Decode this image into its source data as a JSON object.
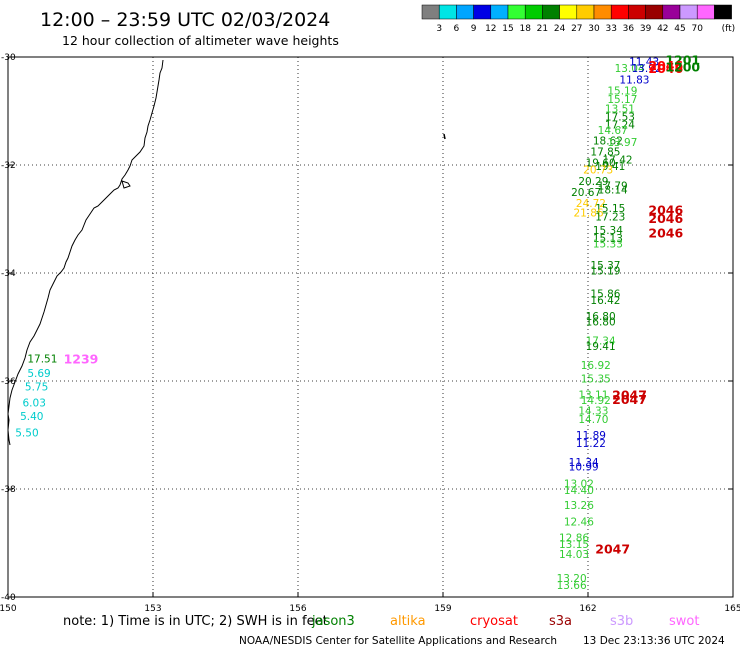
{
  "title": "12:00 – 23:59 UTC 02/03/2024",
  "subtitle": "12 hour collection of altimeter wave heights",
  "color_scale": {
    "colors": [
      "#7f7f7f",
      "#00e5e5",
      "#00a5ff",
      "#0000e5",
      "#00b0ff",
      "#33ff33",
      "#00cc00",
      "#008000",
      "#ffff00",
      "#ffcc00",
      "#ff8c00",
      "#ff0000",
      "#cc0000",
      "#990000",
      "#990099",
      "#cc99ff",
      "#ff66ff",
      "#000000"
    ],
    "labels": [
      "3",
      "6",
      "9",
      "12",
      "15",
      "18",
      "21",
      "24",
      "27",
      "30",
      "33",
      "36",
      "39",
      "42",
      "45",
      "70"
    ],
    "unit": "(ft)"
  },
  "chart_data": {
    "type": "scatter",
    "title": "12:00 – 23:59 UTC 02/03/2024",
    "subtitle": "12 hour collection of altimeter wave heights",
    "xlim": [
      150,
      165
    ],
    "ylim": [
      -40,
      -30
    ],
    "x_ticks": [
      "150",
      "153",
      "156",
      "159",
      "162",
      "165"
    ],
    "y_ticks": [
      "-30",
      "-32",
      "-34",
      "-36",
      "-38",
      "-40"
    ],
    "grid": true,
    "points": [
      {
        "label": "11.43",
        "x": 162.85,
        "y": -30.08,
        "color": "#0000cc"
      },
      {
        "label": "13.04",
        "x": 162.55,
        "y": -30.2,
        "color": "#33cc33"
      },
      {
        "label": "13.92",
        "x": 162.9,
        "y": -30.2,
        "color": "#0000cc"
      },
      {
        "label": "11.83",
        "x": 162.65,
        "y": -30.42,
        "color": "#0000cc"
      },
      {
        "label": "15.19",
        "x": 162.4,
        "y": -30.62,
        "color": "#33cc33"
      },
      {
        "label": "15.17",
        "x": 162.4,
        "y": -30.78,
        "color": "#33cc33"
      },
      {
        "label": "13.51",
        "x": 162.35,
        "y": -30.95,
        "color": "#33cc33"
      },
      {
        "label": "17.53",
        "x": 162.35,
        "y": -31.1,
        "color": "#008000"
      },
      {
        "label": "17.24",
        "x": 162.35,
        "y": -31.25,
        "color": "#008000"
      },
      {
        "label": "14.67",
        "x": 162.2,
        "y": -31.35,
        "color": "#33cc33"
      },
      {
        "label": "18.62",
        "x": 162.1,
        "y": -31.55,
        "color": "#008000"
      },
      {
        "label": "13.97",
        "x": 162.4,
        "y": -31.57,
        "color": "#33cc33"
      },
      {
        "label": "17.85",
        "x": 162.05,
        "y": -31.75,
        "color": "#008000"
      },
      {
        "label": "17.42",
        "x": 162.3,
        "y": -31.9,
        "color": "#008000"
      },
      {
        "label": "19.60",
        "x": 161.95,
        "y": -31.95,
        "color": "#008000"
      },
      {
        "label": "19.41",
        "x": 162.15,
        "y": -32.02,
        "color": "#008000"
      },
      {
        "label": "20.73",
        "x": 161.9,
        "y": -32.08,
        "color": "#ffcc00"
      },
      {
        "label": "20.29",
        "x": 161.8,
        "y": -32.3,
        "color": "#008000"
      },
      {
        "label": "17.79",
        "x": 162.2,
        "y": -32.38,
        "color": "#008000"
      },
      {
        "label": "18.14",
        "x": 162.2,
        "y": -32.45,
        "color": "#008000"
      },
      {
        "label": "20.67",
        "x": 161.65,
        "y": -32.5,
        "color": "#008000"
      },
      {
        "label": "24.72",
        "x": 161.75,
        "y": -32.7,
        "color": "#ffcc00"
      },
      {
        "label": "15.15",
        "x": 162.15,
        "y": -32.8,
        "color": "#008000"
      },
      {
        "label": "21.86",
        "x": 161.7,
        "y": -32.88,
        "color": "#ffcc00"
      },
      {
        "label": "17.23",
        "x": 162.15,
        "y": -32.95,
        "color": "#008000"
      },
      {
        "label": "15.34",
        "x": 162.1,
        "y": -33.2,
        "color": "#008000"
      },
      {
        "label": "15.13",
        "x": 162.1,
        "y": -33.35,
        "color": "#008000"
      },
      {
        "label": "15.33",
        "x": 162.1,
        "y": -33.45,
        "color": "#33cc33"
      },
      {
        "label": "15.37",
        "x": 162.05,
        "y": -33.85,
        "color": "#008000"
      },
      {
        "label": "15.19",
        "x": 162.05,
        "y": -33.95,
        "color": "#008000"
      },
      {
        "label": "15.86",
        "x": 162.05,
        "y": -34.38,
        "color": "#008000"
      },
      {
        "label": "16.42",
        "x": 162.05,
        "y": -34.5,
        "color": "#008000"
      },
      {
        "label": "16.80",
        "x": 161.95,
        "y": -34.8,
        "color": "#008000"
      },
      {
        "label": "16.80",
        "x": 161.95,
        "y": -34.9,
        "color": "#008000"
      },
      {
        "label": "17.34",
        "x": 161.95,
        "y": -35.25,
        "color": "#33cc33"
      },
      {
        "label": "19.41",
        "x": 161.95,
        "y": -35.35,
        "color": "#008000"
      },
      {
        "label": "16.92",
        "x": 161.85,
        "y": -35.7,
        "color": "#33cc33"
      },
      {
        "label": "15.35",
        "x": 161.85,
        "y": -35.95,
        "color": "#33cc33"
      },
      {
        "label": "13.11",
        "x": 161.8,
        "y": -36.25,
        "color": "#33cc33"
      },
      {
        "label": "14.92",
        "x": 161.85,
        "y": -36.35,
        "color": "#33cc33"
      },
      {
        "label": "14.33",
        "x": 161.8,
        "y": -36.55,
        "color": "#33cc33"
      },
      {
        "label": "14.70",
        "x": 161.8,
        "y": -36.7,
        "color": "#33cc33"
      },
      {
        "label": "11.89",
        "x": 161.75,
        "y": -37.0,
        "color": "#0000cc"
      },
      {
        "label": "11.22",
        "x": 161.75,
        "y": -37.15,
        "color": "#0000cc"
      },
      {
        "label": "11.34",
        "x": 161.6,
        "y": -37.5,
        "color": "#0000cc"
      },
      {
        "label": "10.99",
        "x": 161.6,
        "y": -37.58,
        "color": "#0000cc"
      },
      {
        "label": "13.02",
        "x": 161.5,
        "y": -37.9,
        "color": "#33cc33"
      },
      {
        "label": "14.40",
        "x": 161.5,
        "y": -38.02,
        "color": "#33cc33"
      },
      {
        "label": "13.26",
        "x": 161.5,
        "y": -38.3,
        "color": "#33cc33"
      },
      {
        "label": "12.46",
        "x": 161.5,
        "y": -38.6,
        "color": "#33cc33"
      },
      {
        "label": "12.86",
        "x": 161.4,
        "y": -38.9,
        "color": "#33cc33"
      },
      {
        "label": "13.15",
        "x": 161.4,
        "y": -39.02,
        "color": "#33cc33"
      },
      {
        "label": "14.03",
        "x": 161.4,
        "y": -39.2,
        "color": "#33cc33"
      },
      {
        "label": "13.20",
        "x": 161.35,
        "y": -39.65,
        "color": "#33cc33"
      },
      {
        "label": "13.66",
        "x": 161.35,
        "y": -39.78,
        "color": "#33cc33"
      },
      {
        "label": "17.51",
        "x": 150.4,
        "y": -35.58,
        "color": "#008000"
      },
      {
        "label": "5.69",
        "x": 150.4,
        "y": -35.85,
        "color": "#00cccc"
      },
      {
        "label": "5.75",
        "x": 150.35,
        "y": -36.1,
        "color": "#00cccc"
      },
      {
        "label": "6.03",
        "x": 150.3,
        "y": -36.4,
        "color": "#00cccc"
      },
      {
        "label": "5.40",
        "x": 150.25,
        "y": -36.65,
        "color": "#00cccc"
      },
      {
        "label": "5.50",
        "x": 150.15,
        "y": -36.95,
        "color": "#00cccc"
      }
    ],
    "cycle_labels": [
      {
        "label": "1201",
        "x": 163.6,
        "y": -30.05,
        "color": "#008000"
      },
      {
        "label": "2046",
        "x": 163.25,
        "y": -30.15,
        "color": "#ff0000"
      },
      {
        "label": "2046",
        "x": 163.25,
        "y": -30.2,
        "color": "#ff0000"
      },
      {
        "label": "1200",
        "x": 163.6,
        "y": -30.18,
        "color": "#008000"
      },
      {
        "label": "2046",
        "x": 163.25,
        "y": -32.82,
        "color": "#cc0000"
      },
      {
        "label": "2046",
        "x": 163.25,
        "y": -32.98,
        "color": "#cc0000"
      },
      {
        "label": "2046",
        "x": 163.25,
        "y": -33.25,
        "color": "#cc0000"
      },
      {
        "label": "2047",
        "x": 162.5,
        "y": -36.25,
        "color": "#cc0000"
      },
      {
        "label": "2047",
        "x": 162.5,
        "y": -36.33,
        "color": "#cc0000"
      },
      {
        "label": "2047",
        "x": 162.15,
        "y": -39.1,
        "color": "#cc0000"
      },
      {
        "label": "1239",
        "x": 151.15,
        "y": -35.58,
        "color": "#ff66ff"
      }
    ],
    "legend": [
      "jason3",
      "altika",
      "cryosat",
      "s3a",
      "s3b",
      "swot"
    ]
  },
  "footer": {
    "note": "note: 1) Time is in UTC; 2) SWH is in feet",
    "satellites": [
      {
        "name": "jason3",
        "color": "#008000"
      },
      {
        "name": "altika",
        "color": "#ff9900"
      },
      {
        "name": "cryosat",
        "color": "#ff0000"
      },
      {
        "name": "s3a",
        "color": "#990000"
      },
      {
        "name": "s3b",
        "color": "#cc99ff"
      },
      {
        "name": "swot",
        "color": "#ff66ff"
      }
    ],
    "credit": "NOAA/NESDIS Center for Satellite Applications and Research",
    "timestamp": "13 Dec 23:13:36 UTC 2024"
  }
}
